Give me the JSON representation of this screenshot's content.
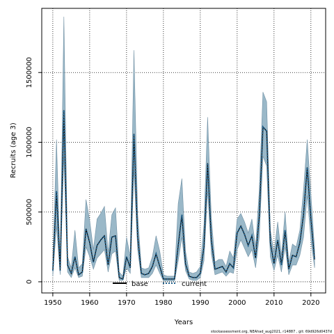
{
  "chart_data": {
    "type": "area",
    "xlabel": "Years",
    "ylabel": "Recruits (age 3)",
    "xlim": [
      1947,
      2024
    ],
    "ylim": [
      -80000,
      1960000
    ],
    "x_ticks": [
      1950,
      1960,
      1970,
      1980,
      1990,
      2000,
      2010,
      2020
    ],
    "y_ticks": [
      0,
      500000,
      1000000,
      1500000
    ],
    "grid": true,
    "legend_position": "bottom-center",
    "colors": {
      "band_fill": "#9ab8c8",
      "band_edge": "#6f8fa3",
      "base": "#000000",
      "current": "#1f5f8b",
      "grid": "#000000"
    },
    "x": [
      1950,
      1951,
      1952,
      1953,
      1954,
      1955,
      1956,
      1957,
      1958,
      1959,
      1960,
      1961,
      1962,
      1963,
      1964,
      1965,
      1966,
      1967,
      1968,
      1969,
      1970,
      1971,
      1972,
      1973,
      1974,
      1975,
      1976,
      1977,
      1978,
      1979,
      1980,
      1981,
      1982,
      1983,
      1984,
      1985,
      1986,
      1987,
      1988,
      1989,
      1990,
      1991,
      1992,
      1993,
      1994,
      1995,
      1996,
      1997,
      1998,
      1999,
      2000,
      2001,
      2002,
      2003,
      2004,
      2005,
      2006,
      2007,
      2008,
      2009,
      2010,
      2011,
      2012,
      2013,
      2014,
      2015,
      2016,
      2017,
      2018,
      2019,
      2020,
      2021
    ],
    "series": [
      {
        "name": "base",
        "style": "solid",
        "values": [
          80000,
          650000,
          80000,
          1230000,
          120000,
          60000,
          180000,
          50000,
          70000,
          380000,
          280000,
          140000,
          260000,
          300000,
          330000,
          120000,
          320000,
          330000,
          30000,
          20000,
          180000,
          100000,
          1060000,
          330000,
          60000,
          50000,
          60000,
          110000,
          200000,
          110000,
          20000,
          20000,
          20000,
          20000,
          260000,
          480000,
          130000,
          40000,
          30000,
          30000,
          60000,
          250000,
          850000,
          300000,
          90000,
          100000,
          110000,
          70000,
          130000,
          100000,
          350000,
          400000,
          340000,
          260000,
          330000,
          170000,
          470000,
          1110000,
          1080000,
          280000,
          130000,
          300000,
          120000,
          370000,
          90000,
          190000,
          180000,
          280000,
          480000,
          820000,
          450000,
          160000
        ]
      },
      {
        "name": "current",
        "style": "dotted",
        "values": [
          80000,
          650000,
          80000,
          1230000,
          120000,
          60000,
          180000,
          50000,
          70000,
          380000,
          280000,
          140000,
          260000,
          300000,
          330000,
          120000,
          320000,
          330000,
          30000,
          20000,
          180000,
          100000,
          1060000,
          330000,
          60000,
          50000,
          60000,
          110000,
          200000,
          110000,
          20000,
          20000,
          20000,
          20000,
          260000,
          480000,
          130000,
          40000,
          30000,
          30000,
          60000,
          250000,
          850000,
          300000,
          90000,
          100000,
          110000,
          70000,
          130000,
          100000,
          350000,
          400000,
          340000,
          260000,
          330000,
          170000,
          470000,
          1110000,
          1080000,
          280000,
          130000,
          300000,
          120000,
          370000,
          90000,
          190000,
          180000,
          280000,
          480000,
          820000,
          450000,
          160000
        ]
      }
    ],
    "band": {
      "lower": [
        40000,
        400000,
        50000,
        900000,
        70000,
        30000,
        100000,
        30000,
        40000,
        250000,
        180000,
        90000,
        170000,
        200000,
        230000,
        70000,
        200000,
        220000,
        10000,
        10000,
        100000,
        60000,
        800000,
        230000,
        30000,
        30000,
        30000,
        60000,
        120000,
        60000,
        5000,
        5000,
        5000,
        5000,
        150000,
        320000,
        80000,
        20000,
        10000,
        10000,
        30000,
        150000,
        650000,
        200000,
        50000,
        60000,
        70000,
        40000,
        70000,
        60000,
        230000,
        300000,
        240000,
        180000,
        230000,
        100000,
        320000,
        900000,
        830000,
        180000,
        80000,
        190000,
        70000,
        250000,
        50000,
        120000,
        120000,
        190000,
        320000,
        620000,
        300000,
        100000
      ],
      "upper": [
        120000,
        1020000,
        130000,
        1900000,
        180000,
        100000,
        370000,
        100000,
        130000,
        590000,
        440000,
        230000,
        450000,
        490000,
        540000,
        210000,
        480000,
        530000,
        70000,
        40000,
        320000,
        180000,
        1660000,
        490000,
        100000,
        90000,
        100000,
        180000,
        330000,
        220000,
        50000,
        40000,
        40000,
        40000,
        560000,
        740000,
        220000,
        70000,
        60000,
        70000,
        110000,
        410000,
        1180000,
        460000,
        140000,
        160000,
        160000,
        110000,
        220000,
        170000,
        450000,
        490000,
        430000,
        350000,
        450000,
        250000,
        660000,
        1360000,
        1290000,
        370000,
        210000,
        430000,
        190000,
        500000,
        140000,
        270000,
        250000,
        370000,
        660000,
        1020000,
        630000,
        230000
      ]
    }
  },
  "footer_note": "stockassessment.org, NEAhad_aug2021, r14887 , git: 69d926d0437d"
}
